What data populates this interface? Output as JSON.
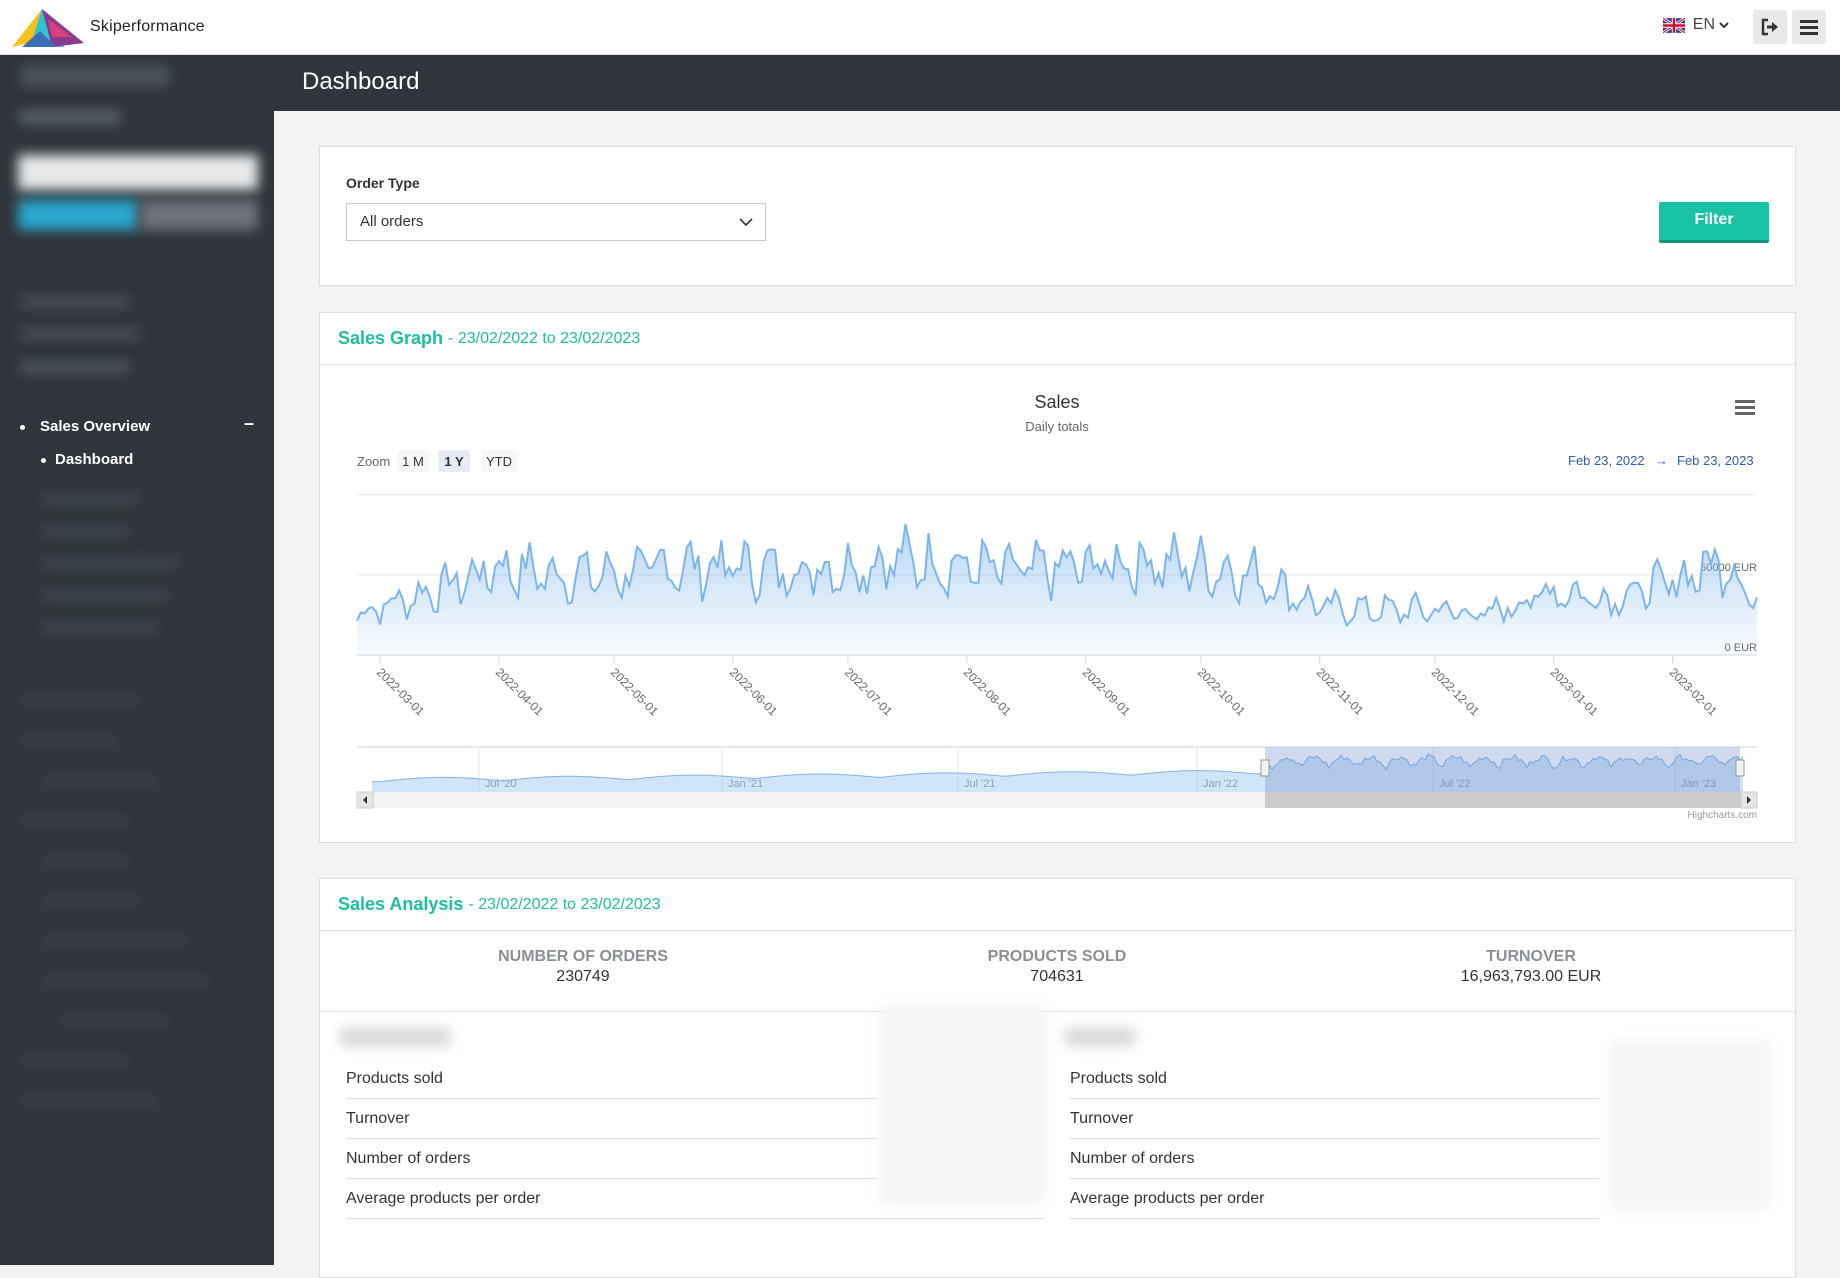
{
  "header": {
    "brand": "Skiperformance",
    "language": "EN"
  },
  "sidebar": {
    "section": "Sales Overview",
    "section_toggle": "–",
    "active_item": "Dashboard"
  },
  "page": {
    "title": "Dashboard"
  },
  "filter": {
    "label": "Order Type",
    "selected": "All orders",
    "button": "Filter"
  },
  "sales_graph": {
    "title": "Sales Graph",
    "range": "- 23/02/2022 to 23/02/2023",
    "zoom_label": "Zoom",
    "zoom_options": [
      "1 M",
      "1 Y",
      "YTD"
    ],
    "active_zoom": "1 Y",
    "range_from": "Feb 23, 2022",
    "range_arrow": "→",
    "range_to": "Feb 23, 2023",
    "credits": "Highcharts.com",
    "navigator_labels": [
      "Jul '20",
      "Jan '21",
      "Jul '21",
      "Jan '22",
      "Jul '22",
      "Jan '23"
    ]
  },
  "chart_data": {
    "type": "area",
    "title": "Sales",
    "subtitle": "Daily totals",
    "x_tick_labels": [
      "2022-03-01",
      "2022-04-01",
      "2022-05-01",
      "2022-06-01",
      "2022-07-01",
      "2022-08-01",
      "2022-09-01",
      "2022-10-01",
      "2022-11-01",
      "2022-12-01",
      "2023-01-01",
      "2023-02-01"
    ],
    "y_tick_labels": [
      "0 EUR",
      "50000 EUR"
    ],
    "ylim": [
      0,
      100000
    ],
    "x_range": [
      "2022-02-23",
      "2023-02-23"
    ],
    "series": [
      {
        "x": [
          "2022-02-23",
          "2022-03-01",
          "2022-03-15",
          "2022-04-01",
          "2022-04-15",
          "2022-05-01",
          "2022-05-15",
          "2022-06-01",
          "2022-06-15",
          "2022-07-01",
          "2022-07-15",
          "2022-08-01",
          "2022-08-15",
          "2022-09-01",
          "2022-09-15",
          "2022-10-01",
          "2022-10-15",
          "2022-11-01",
          "2022-11-15",
          "2022-12-01",
          "2022-12-15",
          "2023-01-01",
          "2023-01-15",
          "2023-02-01",
          "2023-02-15",
          "2023-02-23"
        ],
        "values": [
          25000,
          30000,
          40000,
          55000,
          50000,
          50000,
          55000,
          55000,
          52000,
          55000,
          60000,
          55000,
          52000,
          55000,
          58000,
          55000,
          50000,
          30000,
          28000,
          28000,
          25000,
          40000,
          35000,
          45000,
          60000,
          30000
        ]
      }
    ],
    "grid": true,
    "legend": "none"
  },
  "sales_analysis": {
    "title": "Sales Analysis",
    "range": "- 23/02/2022 to 23/02/2023",
    "stats": [
      {
        "label": "NUMBER OF ORDERS",
        "value": "230749"
      },
      {
        "label": "PRODUCTS SOLD",
        "value": "704631"
      },
      {
        "label": "TURNOVER",
        "value": "16,963,793.00 EUR"
      }
    ],
    "rows_left": [
      "Products sold",
      "Turnover",
      "Number of orders",
      "Average products per order"
    ],
    "rows_right": [
      "Products sold",
      "Turnover",
      "Number of orders",
      "Average products per order"
    ]
  },
  "colors": {
    "accent": "#17c3a2",
    "sidebar": "#2f353a",
    "series": "#7cb5ec"
  }
}
